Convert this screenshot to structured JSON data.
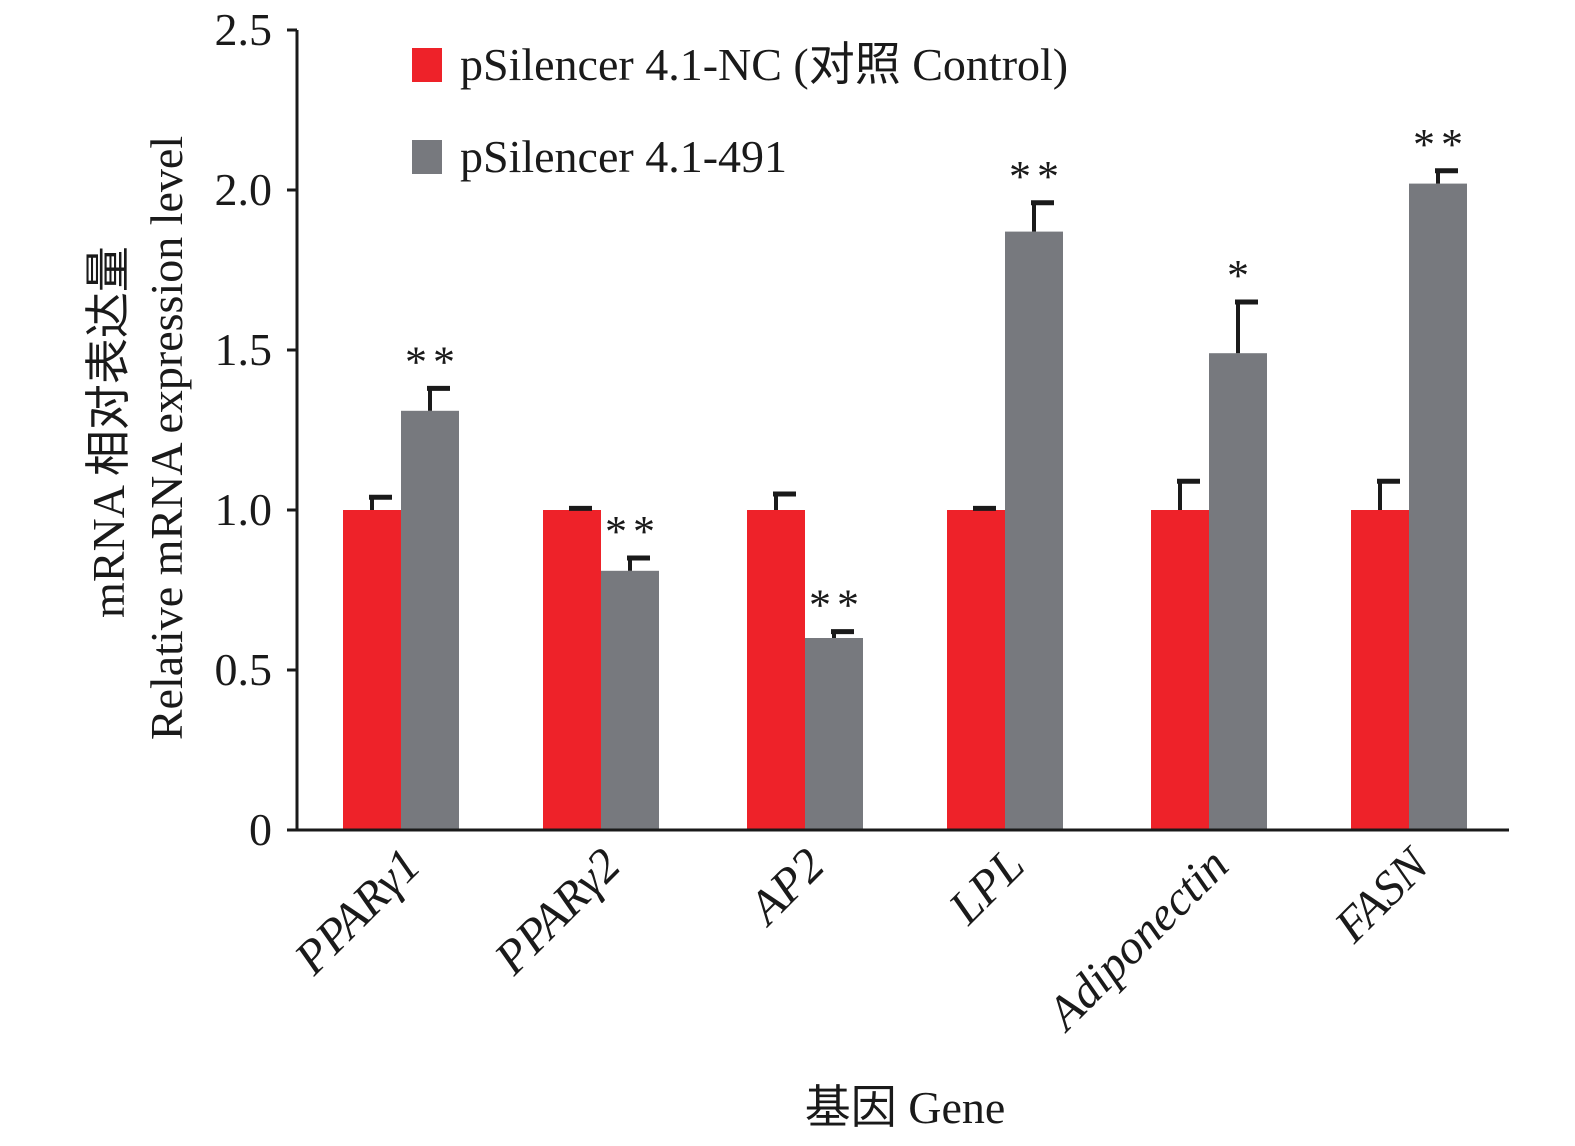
{
  "chart_data": {
    "type": "bar",
    "title": "",
    "xlabel": "基因 Gene",
    "ylabel_line1": "mRNA 相对表达量",
    "ylabel_line2": "Relative mRNA expression level",
    "ylim": [
      0,
      2.5
    ],
    "yticks": [
      0,
      0.5,
      1.0,
      1.5,
      2.0,
      2.5
    ],
    "ytick_labels": [
      "0",
      "0.5",
      "1.0",
      "1.5",
      "2.0",
      "2.5"
    ],
    "categories": [
      "PPARγ1",
      "PPARγ2",
      "AP2",
      "LPL",
      "Adiponectin",
      "FASN"
    ],
    "legend_position": "top-center",
    "series": [
      {
        "name": "pSilencer 4.1-NC (对照 Control)",
        "color": "#ee2229",
        "values": [
          1.0,
          1.0,
          1.0,
          1.0,
          1.0,
          1.0
        ],
        "errors": [
          0.04,
          0.005,
          0.05,
          0.005,
          0.09,
          0.09
        ],
        "significance": [
          "",
          "",
          "",
          "",
          "",
          ""
        ]
      },
      {
        "name": "pSilencer 4.1-491",
        "color": "#77797e",
        "values": [
          1.31,
          0.81,
          0.6,
          1.87,
          1.49,
          2.02
        ],
        "errors": [
          0.07,
          0.04,
          0.02,
          0.09,
          0.16,
          0.04
        ],
        "significance": [
          "**",
          "**",
          "**",
          "**",
          "*",
          "**"
        ]
      }
    ]
  }
}
